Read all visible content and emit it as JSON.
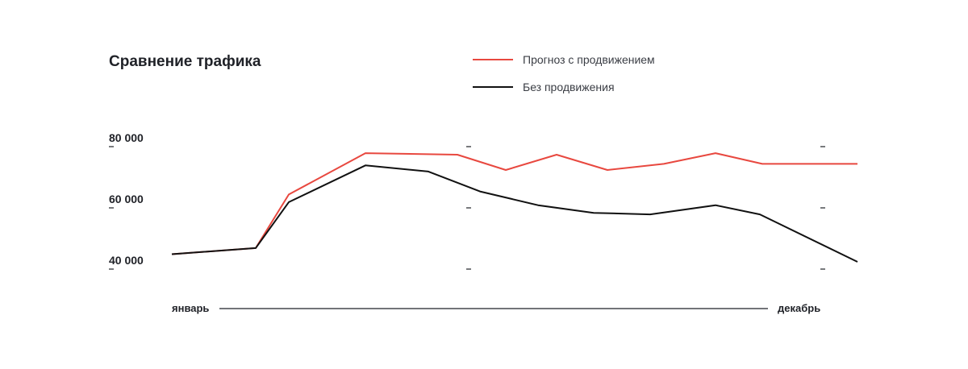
{
  "chart_data": {
    "type": "line",
    "title": "Сравнение трафика",
    "x": [
      1,
      2,
      3,
      4,
      5,
      6,
      7,
      8,
      9,
      10,
      11,
      12
    ],
    "x_start_label": "январь",
    "x_end_label": "декабрь",
    "y_ticks": [
      {
        "value": 40000,
        "label": "40 000"
      },
      {
        "value": 60000,
        "label": "60 000"
      },
      {
        "value": 80000,
        "label": "80 000"
      }
    ],
    "ylim": [
      40000,
      80000
    ],
    "grid": false,
    "legend_position": "top-center",
    "series": [
      {
        "name": "Прогноз с продвижением",
        "color": "#e8483f",
        "values": [
          42500,
          44500,
          62000,
          75500,
          75000,
          70000,
          75000,
          70000,
          72000,
          75500,
          72000,
          72000
        ],
        "x_override": [
          1,
          2.44,
          2.84,
          3.67,
          4.42,
          5.47,
          6.22,
          6.89,
          7.51,
          8.16,
          9.25,
          9.48
        ]
      },
      {
        "name": "Без продвижения",
        "color": "#111111",
        "values": [
          42500,
          44500,
          59500,
          71500,
          69500,
          63000,
          58500,
          56000,
          55500,
          58500,
          55500,
          40000
        ]
      }
    ]
  }
}
